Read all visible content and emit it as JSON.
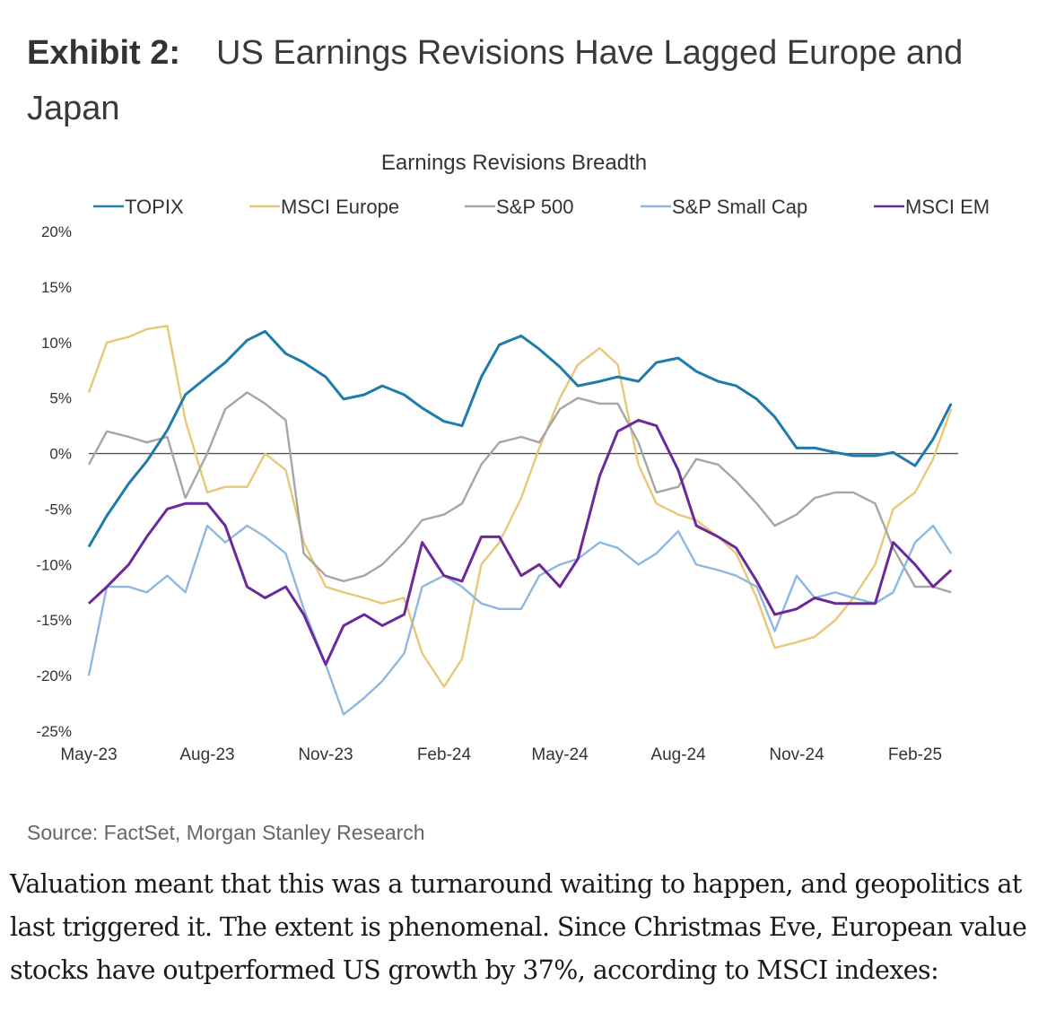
{
  "header": {
    "exhibit": "Exhibit 2:",
    "title": "US Earnings Revisions Have Lagged Europe and Japan"
  },
  "source": "Source: FactSet, Morgan Stanley Research",
  "paragraph": "Valuation meant that this was a turnaround waiting to happen, and geopolitics at last triggered it. The extent is phenomenal. Since Christmas Eve, European value stocks have outperformed US growth by 37%, according to MSCI indexes:",
  "chart_data": {
    "type": "line",
    "title": "Earnings Revisions Breadth",
    "xlabel": "",
    "ylabel": "",
    "ylim": [
      -25,
      20
    ],
    "yticks": [
      "20%",
      "15%",
      "10%",
      "5%",
      "0%",
      "-5%",
      "-10%",
      "-15%",
      "-20%",
      "-25%"
    ],
    "ytick_values": [
      20,
      15,
      10,
      5,
      0,
      -5,
      -10,
      -15,
      -20,
      -25
    ],
    "xticks": [
      "May-23",
      "Aug-23",
      "Nov-23",
      "Feb-24",
      "May-24",
      "Aug-24",
      "Nov-24",
      "Feb-25"
    ],
    "xtick_dates": [
      "2023-05-01",
      "2023-08-01",
      "2023-11-01",
      "2024-02-01",
      "2024-05-01",
      "2024-08-01",
      "2024-11-01",
      "2025-02-01"
    ],
    "grid": false,
    "zero_line": true,
    "legend_position": "top",
    "x": [
      "2023-05-01",
      "2023-05-15",
      "2023-06-01",
      "2023-06-15",
      "2023-07-01",
      "2023-07-15",
      "2023-08-01",
      "2023-08-15",
      "2023-09-01",
      "2023-09-15",
      "2023-10-01",
      "2023-10-15",
      "2023-11-01",
      "2023-11-15",
      "2023-12-01",
      "2023-12-15",
      "2024-01-01",
      "2024-01-15",
      "2024-02-01",
      "2024-02-15",
      "2024-03-01",
      "2024-03-15",
      "2024-04-01",
      "2024-04-15",
      "2024-05-01",
      "2024-05-15",
      "2024-06-01",
      "2024-06-15",
      "2024-07-01",
      "2024-07-15",
      "2024-08-01",
      "2024-08-15",
      "2024-09-01",
      "2024-09-15",
      "2024-10-01",
      "2024-10-15",
      "2024-11-01",
      "2024-11-15",
      "2024-12-01",
      "2024-12-15",
      "2025-01-01",
      "2025-01-15",
      "2025-02-01",
      "2025-02-15",
      "2025-03-01"
    ],
    "series": [
      {
        "name": "TOPIX",
        "color": "#1f7bab",
        "values": [
          -8.4,
          -5.6,
          -2.7,
          -0.7,
          2.1,
          5.3,
          6.9,
          8.2,
          10.2,
          11.0,
          9.0,
          8.2,
          6.9,
          4.9,
          5.3,
          6.1,
          5.3,
          4.1,
          2.9,
          2.5,
          6.9,
          9.8,
          10.6,
          9.4,
          7.8,
          6.1,
          6.5,
          6.9,
          6.5,
          8.2,
          8.6,
          7.4,
          6.5,
          6.1,
          4.9,
          3.3,
          0.5,
          0.5,
          0.1,
          -0.2,
          -0.2,
          0.1,
          -1.1,
          1.3,
          4.5
        ]
      },
      {
        "name": "MSCI Europe",
        "color": "#e8c878",
        "values": [
          5.5,
          10,
          10.5,
          11.2,
          11.5,
          3,
          -3.5,
          -3,
          -3,
          0,
          -1.5,
          -8,
          -12,
          -12.5,
          -13,
          -13.5,
          -13,
          -18,
          -21,
          -18.5,
          -10,
          -8,
          -4,
          0.5,
          5,
          8,
          9.5,
          8,
          -1,
          -4.5,
          -5.5,
          -6,
          -7.5,
          -9,
          -13,
          -17.5,
          -17,
          -16.5,
          -15,
          -13,
          -10,
          -5,
          -3.5,
          -0.5,
          4
        ]
      },
      {
        "name": "S&P 500",
        "color": "#a6a6a6",
        "values": [
          -1,
          2,
          1.5,
          1,
          1.5,
          -4,
          0,
          4,
          5.5,
          4.5,
          3,
          -9,
          -11,
          -11.5,
          -11,
          -10,
          -8,
          -6,
          -5.5,
          -4.5,
          -1,
          1,
          1.5,
          1,
          4,
          5,
          4.5,
          4.5,
          1,
          -3.5,
          -3,
          -0.5,
          -1,
          -2.5,
          -4.5,
          -6.5,
          -5.5,
          -4,
          -3.5,
          -3.5,
          -4.5,
          -8.5,
          -12,
          -12,
          -12.5
        ]
      },
      {
        "name": "S&P Small Cap",
        "color": "#8db8e0",
        "values": [
          -20,
          -12,
          -12,
          -12.5,
          -11,
          -12.5,
          -6.5,
          -8,
          -6.5,
          -7.5,
          -9,
          -14,
          -19,
          -23.5,
          -22,
          -20.5,
          -18,
          -12,
          -11,
          -12,
          -13.5,
          -14,
          -14,
          -11,
          -10,
          -9.5,
          -8,
          -8.5,
          -10,
          -9,
          -7,
          -10,
          -10.5,
          -11,
          -12,
          -16,
          -11,
          -13,
          -12.5,
          -13,
          -13.5,
          -12.5,
          -8,
          -6.5,
          -9
        ]
      },
      {
        "name": "MSCI EM",
        "color": "#6a2a9a",
        "values": [
          -13.5,
          -12,
          -10,
          -7.5,
          -5,
          -4.5,
          -4.5,
          -6.5,
          -12,
          -13,
          -12,
          -14.5,
          -19,
          -15.5,
          -14.5,
          -15.5,
          -14.5,
          -8,
          -11,
          -11.5,
          -7.5,
          -7.5,
          -11,
          -10,
          -12,
          -9.5,
          -2,
          2,
          3,
          2.5,
          -1.5,
          -6.5,
          -7.5,
          -8.5,
          -11.5,
          -14.5,
          -14,
          -13,
          -13.5,
          -13.5,
          -13.5,
          -8,
          -10,
          -12,
          -10.5
        ]
      }
    ]
  }
}
